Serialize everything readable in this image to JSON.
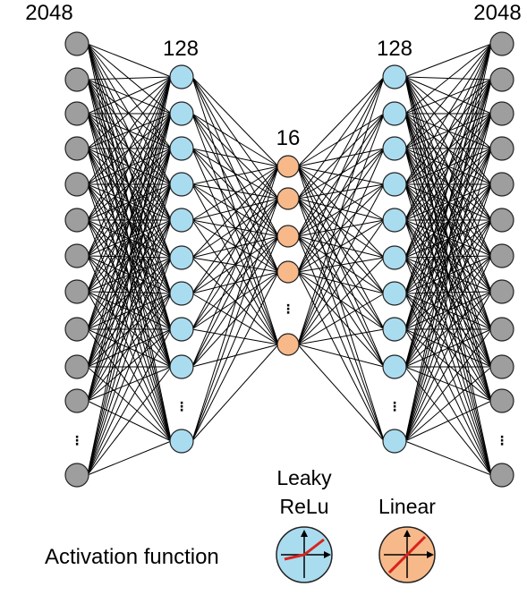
{
  "layers": [
    {
      "id": "input",
      "size_label": "2048",
      "color": "#9e9e9e"
    },
    {
      "id": "encoder",
      "size_label": "128",
      "color": "#aadcf0"
    },
    {
      "id": "bottleneck",
      "size_label": "16",
      "color": "#f7b98a"
    },
    {
      "id": "decoder",
      "size_label": "128",
      "color": "#aadcf0"
    },
    {
      "id": "output",
      "size_label": "2048",
      "color": "#9e9e9e"
    }
  ],
  "ellipsis": "⋮",
  "legend": {
    "title": "Activation function",
    "items": [
      {
        "name_line1": "Leaky",
        "name_line2": "ReLu",
        "color": "#aadcf0",
        "icon": "leaky-relu-icon"
      },
      {
        "name_line1": "",
        "name_line2": "Linear",
        "color": "#f7b98a",
        "icon": "linear-icon"
      }
    ]
  },
  "colors": {
    "edge": "#000000",
    "node_stroke": "#222222",
    "curve": "#d9231c"
  }
}
